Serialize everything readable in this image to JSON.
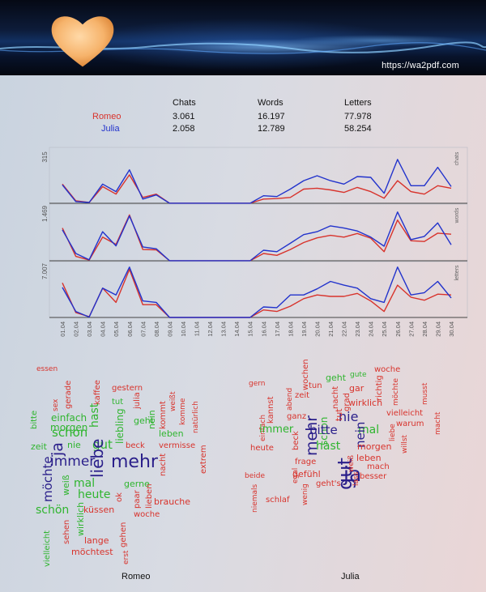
{
  "header": {
    "url": "https://wa2pdf.com"
  },
  "stats": {
    "columns": [
      "Chats",
      "Words",
      "Letters"
    ],
    "rows": [
      {
        "name": "Romeo",
        "values": [
          "3.061",
          "16.197",
          "77.978"
        ],
        "color": "#d8332c"
      },
      {
        "name": "Julia",
        "values": [
          "2.058",
          "12.789",
          "58.254"
        ],
        "color": "#2233cc"
      }
    ]
  },
  "chart_data": {
    "type": "line",
    "x": [
      "01.04",
      "02.04",
      "03.04",
      "04.04",
      "05.04",
      "06.04",
      "07.04",
      "08.04",
      "09.04",
      "10.04",
      "11.04",
      "12.04",
      "13.04",
      "14.04",
      "15.04",
      "16.04",
      "17.04",
      "18.04",
      "19.04",
      "20.04",
      "21.04",
      "22.04",
      "23.04",
      "24.04",
      "25.04",
      "26.04",
      "27.04",
      "28.04",
      "29.04",
      "30.04"
    ],
    "panels": [
      {
        "name": "chats",
        "ymax": 315,
        "ymax_label": "315",
        "series": [
          {
            "name": "Romeo",
            "color": "#d8332c",
            "values": [
              115,
              15,
              5,
              100,
              55,
              170,
              35,
              55,
              0,
              0,
              0,
              0,
              0,
              0,
              0,
              25,
              28,
              35,
              85,
              90,
              80,
              65,
              95,
              70,
              30,
              135,
              70,
              55,
              105,
              90
            ]
          },
          {
            "name": "Julia",
            "color": "#2233cc",
            "values": [
              110,
              10,
              5,
              115,
              70,
              200,
              25,
              50,
              0,
              0,
              0,
              0,
              0,
              0,
              0,
              45,
              40,
              85,
              135,
              165,
              135,
              115,
              160,
              155,
              60,
              262,
              105,
              105,
              215,
              100
            ]
          }
        ]
      },
      {
        "name": "words",
        "ymax": 1469,
        "ymax_label": "1.469",
        "series": [
          {
            "name": "Romeo",
            "color": "#d8332c",
            "values": [
              900,
              120,
              20,
              650,
              450,
              1260,
              310,
              300,
              0,
              0,
              0,
              0,
              0,
              0,
              0,
              200,
              150,
              310,
              500,
              630,
              700,
              650,
              750,
              620,
              250,
              1120,
              550,
              530,
              760,
              730
            ]
          },
          {
            "name": "Julia",
            "color": "#2233cc",
            "values": [
              850,
              200,
              30,
              800,
              410,
              1230,
              380,
              330,
              0,
              0,
              0,
              0,
              0,
              0,
              0,
              290,
              250,
              480,
              720,
              800,
              960,
              900,
              820,
              650,
              400,
              1340,
              580,
              670,
              1040,
              440
            ]
          }
        ]
      },
      {
        "name": "letters",
        "ymax": 7007,
        "ymax_label": "7.007",
        "series": [
          {
            "name": "Romeo",
            "color": "#d8332c",
            "values": [
              4600,
              650,
              100,
              3900,
              2000,
              6400,
              1700,
              1700,
              0,
              0,
              0,
              0,
              0,
              0,
              0,
              1000,
              800,
              1500,
              2500,
              3000,
              2800,
              2800,
              3200,
              2200,
              800,
              4300,
              2700,
              2300,
              3100,
              3000
            ]
          },
          {
            "name": "Julia",
            "color": "#2233cc",
            "values": [
              4000,
              800,
              50,
              3900,
              3000,
              6700,
              2200,
              2000,
              0,
              0,
              0,
              0,
              0,
              0,
              0,
              1400,
              1300,
              3000,
              3000,
              3800,
              4800,
              4300,
              3900,
              2500,
              2000,
              6700,
              3000,
              3300,
              4800,
              2600
            ]
          }
        ]
      }
    ]
  },
  "wordclouds": {
    "romeo_caption": "Romeo",
    "julia_caption": "Julia",
    "romeo_words": [
      {
        "t": "essen",
        "c": "#d8332c"
      },
      {
        "t": "gerade",
        "c": "#d8332c"
      },
      {
        "t": "kaffee",
        "c": "#d8332c"
      },
      {
        "t": "sex",
        "c": "#d8332c"
      },
      {
        "t": "gestern",
        "c": "#d8332c"
      },
      {
        "t": "morgen",
        "c": "#2fb52f"
      },
      {
        "t": "tut",
        "c": "#2fb52f"
      },
      {
        "t": "julia",
        "c": "#d8332c"
      },
      {
        "t": "weißt",
        "c": "#d8332c"
      },
      {
        "t": "einfach",
        "c": "#2fb52f"
      },
      {
        "t": "hast",
        "c": "#2fb52f"
      },
      {
        "t": "liebling",
        "c": "#2fb52f"
      },
      {
        "t": "bitte",
        "c": "#2fb52f"
      },
      {
        "t": "schon",
        "c": "#2fb52f"
      },
      {
        "t": "geht",
        "c": "#2fb52f"
      },
      {
        "t": "nein",
        "c": "#2fb52f"
      },
      {
        "t": "kommt",
        "c": "#d8332c"
      },
      {
        "t": "komme",
        "c": "#d8332c"
      },
      {
        "t": "natürlich",
        "c": "#d8332c"
      },
      {
        "t": "zeit",
        "c": "#2fb52f"
      },
      {
        "t": "nie",
        "c": "#2fb52f"
      },
      {
        "t": "gut",
        "c": "#2fb52f"
      },
      {
        "t": "leben",
        "c": "#2fb52f"
      },
      {
        "t": "ja",
        "c": "#2a1f8a"
      },
      {
        "t": "beck",
        "c": "#d8332c"
      },
      {
        "t": "vermisse",
        "c": "#d8332c"
      },
      {
        "t": "immer",
        "c": "#2a1f8a"
      },
      {
        "t": "liebe",
        "c": "#2a1f8a"
      },
      {
        "t": "mehr",
        "c": "#2a1f8a"
      },
      {
        "t": "nacht",
        "c": "#d8332c"
      },
      {
        "t": "extrem",
        "c": "#d8332c"
      },
      {
        "t": "möchte",
        "c": "#2a1f8a"
      },
      {
        "t": "mal",
        "c": "#2fb52f"
      },
      {
        "t": "gerne",
        "c": "#2fb52f"
      },
      {
        "t": "weiß",
        "c": "#2fb52f"
      },
      {
        "t": "heute",
        "c": "#2fb52f"
      },
      {
        "t": "ok",
        "c": "#d8332c"
      },
      {
        "t": "paar",
        "c": "#d8332c"
      },
      {
        "t": "lieben",
        "c": "#d8332c"
      },
      {
        "t": "brauche",
        "c": "#d8332c"
      },
      {
        "t": "schön",
        "c": "#2fb52f"
      },
      {
        "t": "wirklich",
        "c": "#2fb52f"
      },
      {
        "t": "küssen",
        "c": "#d8332c"
      },
      {
        "t": "woche",
        "c": "#d8332c"
      },
      {
        "t": "sehen",
        "c": "#d8332c"
      },
      {
        "t": "vielleicht",
        "c": "#2fb52f"
      },
      {
        "t": "gehen",
        "c": "#d8332c"
      },
      {
        "t": "lange",
        "c": "#d8332c"
      },
      {
        "t": "möchtest",
        "c": "#d8332c"
      },
      {
        "t": "erst",
        "c": "#d8332c"
      }
    ],
    "julia_words": [
      {
        "t": "gern",
        "c": "#d8332c"
      },
      {
        "t": "wochen",
        "c": "#d8332c"
      },
      {
        "t": "kannst",
        "c": "#d8332c"
      },
      {
        "t": "abend",
        "c": "#d8332c"
      },
      {
        "t": "zeit",
        "c": "#d8332c"
      },
      {
        "t": "tun",
        "c": "#d8332c"
      },
      {
        "t": "geht",
        "c": "#2fb52f"
      },
      {
        "t": "gute",
        "c": "#2fb52f"
      },
      {
        "t": "woche",
        "c": "#d8332c"
      },
      {
        "t": "nacht",
        "c": "#d8332c"
      },
      {
        "t": "grad",
        "c": "#d8332c"
      },
      {
        "t": "gar",
        "c": "#d8332c"
      },
      {
        "t": "richtig",
        "c": "#d8332c"
      },
      {
        "t": "möchte",
        "c": "#d8332c"
      },
      {
        "t": "musst",
        "c": "#d8332c"
      },
      {
        "t": "einfach",
        "c": "#d8332c"
      },
      {
        "t": "ganz",
        "c": "#d8332c"
      },
      {
        "t": "schon",
        "c": "#2fb52f"
      },
      {
        "t": "wirklich",
        "c": "#d8332c"
      },
      {
        "t": "heute",
        "c": "#d8332c"
      },
      {
        "t": "immer",
        "c": "#2fb52f"
      },
      {
        "t": "bitte",
        "c": "#2a1f8a"
      },
      {
        "t": "nie",
        "c": "#2a1f8a"
      },
      {
        "t": "tut",
        "c": "#d8332c"
      },
      {
        "t": "vielleicht",
        "c": "#d8332c"
      },
      {
        "t": "warum",
        "c": "#d8332c"
      },
      {
        "t": "macht",
        "c": "#d8332c"
      },
      {
        "t": "beck",
        "c": "#d8332c"
      },
      {
        "t": "mehr",
        "c": "#2a1f8a"
      },
      {
        "t": "mal",
        "c": "#2fb52f"
      },
      {
        "t": "liebe",
        "c": "#d8332c"
      },
      {
        "t": "nein",
        "c": "#2a1f8a"
      },
      {
        "t": "hast",
        "c": "#2fb52f"
      },
      {
        "t": "morgen",
        "c": "#d8332c"
      },
      {
        "t": "willst",
        "c": "#d8332c"
      },
      {
        "t": "frage",
        "c": "#d8332c"
      },
      {
        "t": "gut",
        "c": "#2a1f8a"
      },
      {
        "t": "ja",
        "c": "#2a1f8a"
      },
      {
        "t": "leben",
        "c": "#d8332c"
      },
      {
        "t": "beide",
        "c": "#d8332c"
      },
      {
        "t": "egal",
        "c": "#d8332c"
      },
      {
        "t": "gefühl",
        "c": "#d8332c"
      },
      {
        "t": "weiß",
        "c": "#d8332c"
      },
      {
        "t": "mach",
        "c": "#d8332c"
      },
      {
        "t": "niemals",
        "c": "#d8332c"
      },
      {
        "t": "wenig",
        "c": "#d8332c"
      },
      {
        "t": "geht's",
        "c": "#d8332c"
      },
      {
        "t": "lass",
        "c": "#d8332c"
      },
      {
        "t": "besser",
        "c": "#d8332c"
      },
      {
        "t": "schlaf",
        "c": "#d8332c"
      }
    ]
  }
}
